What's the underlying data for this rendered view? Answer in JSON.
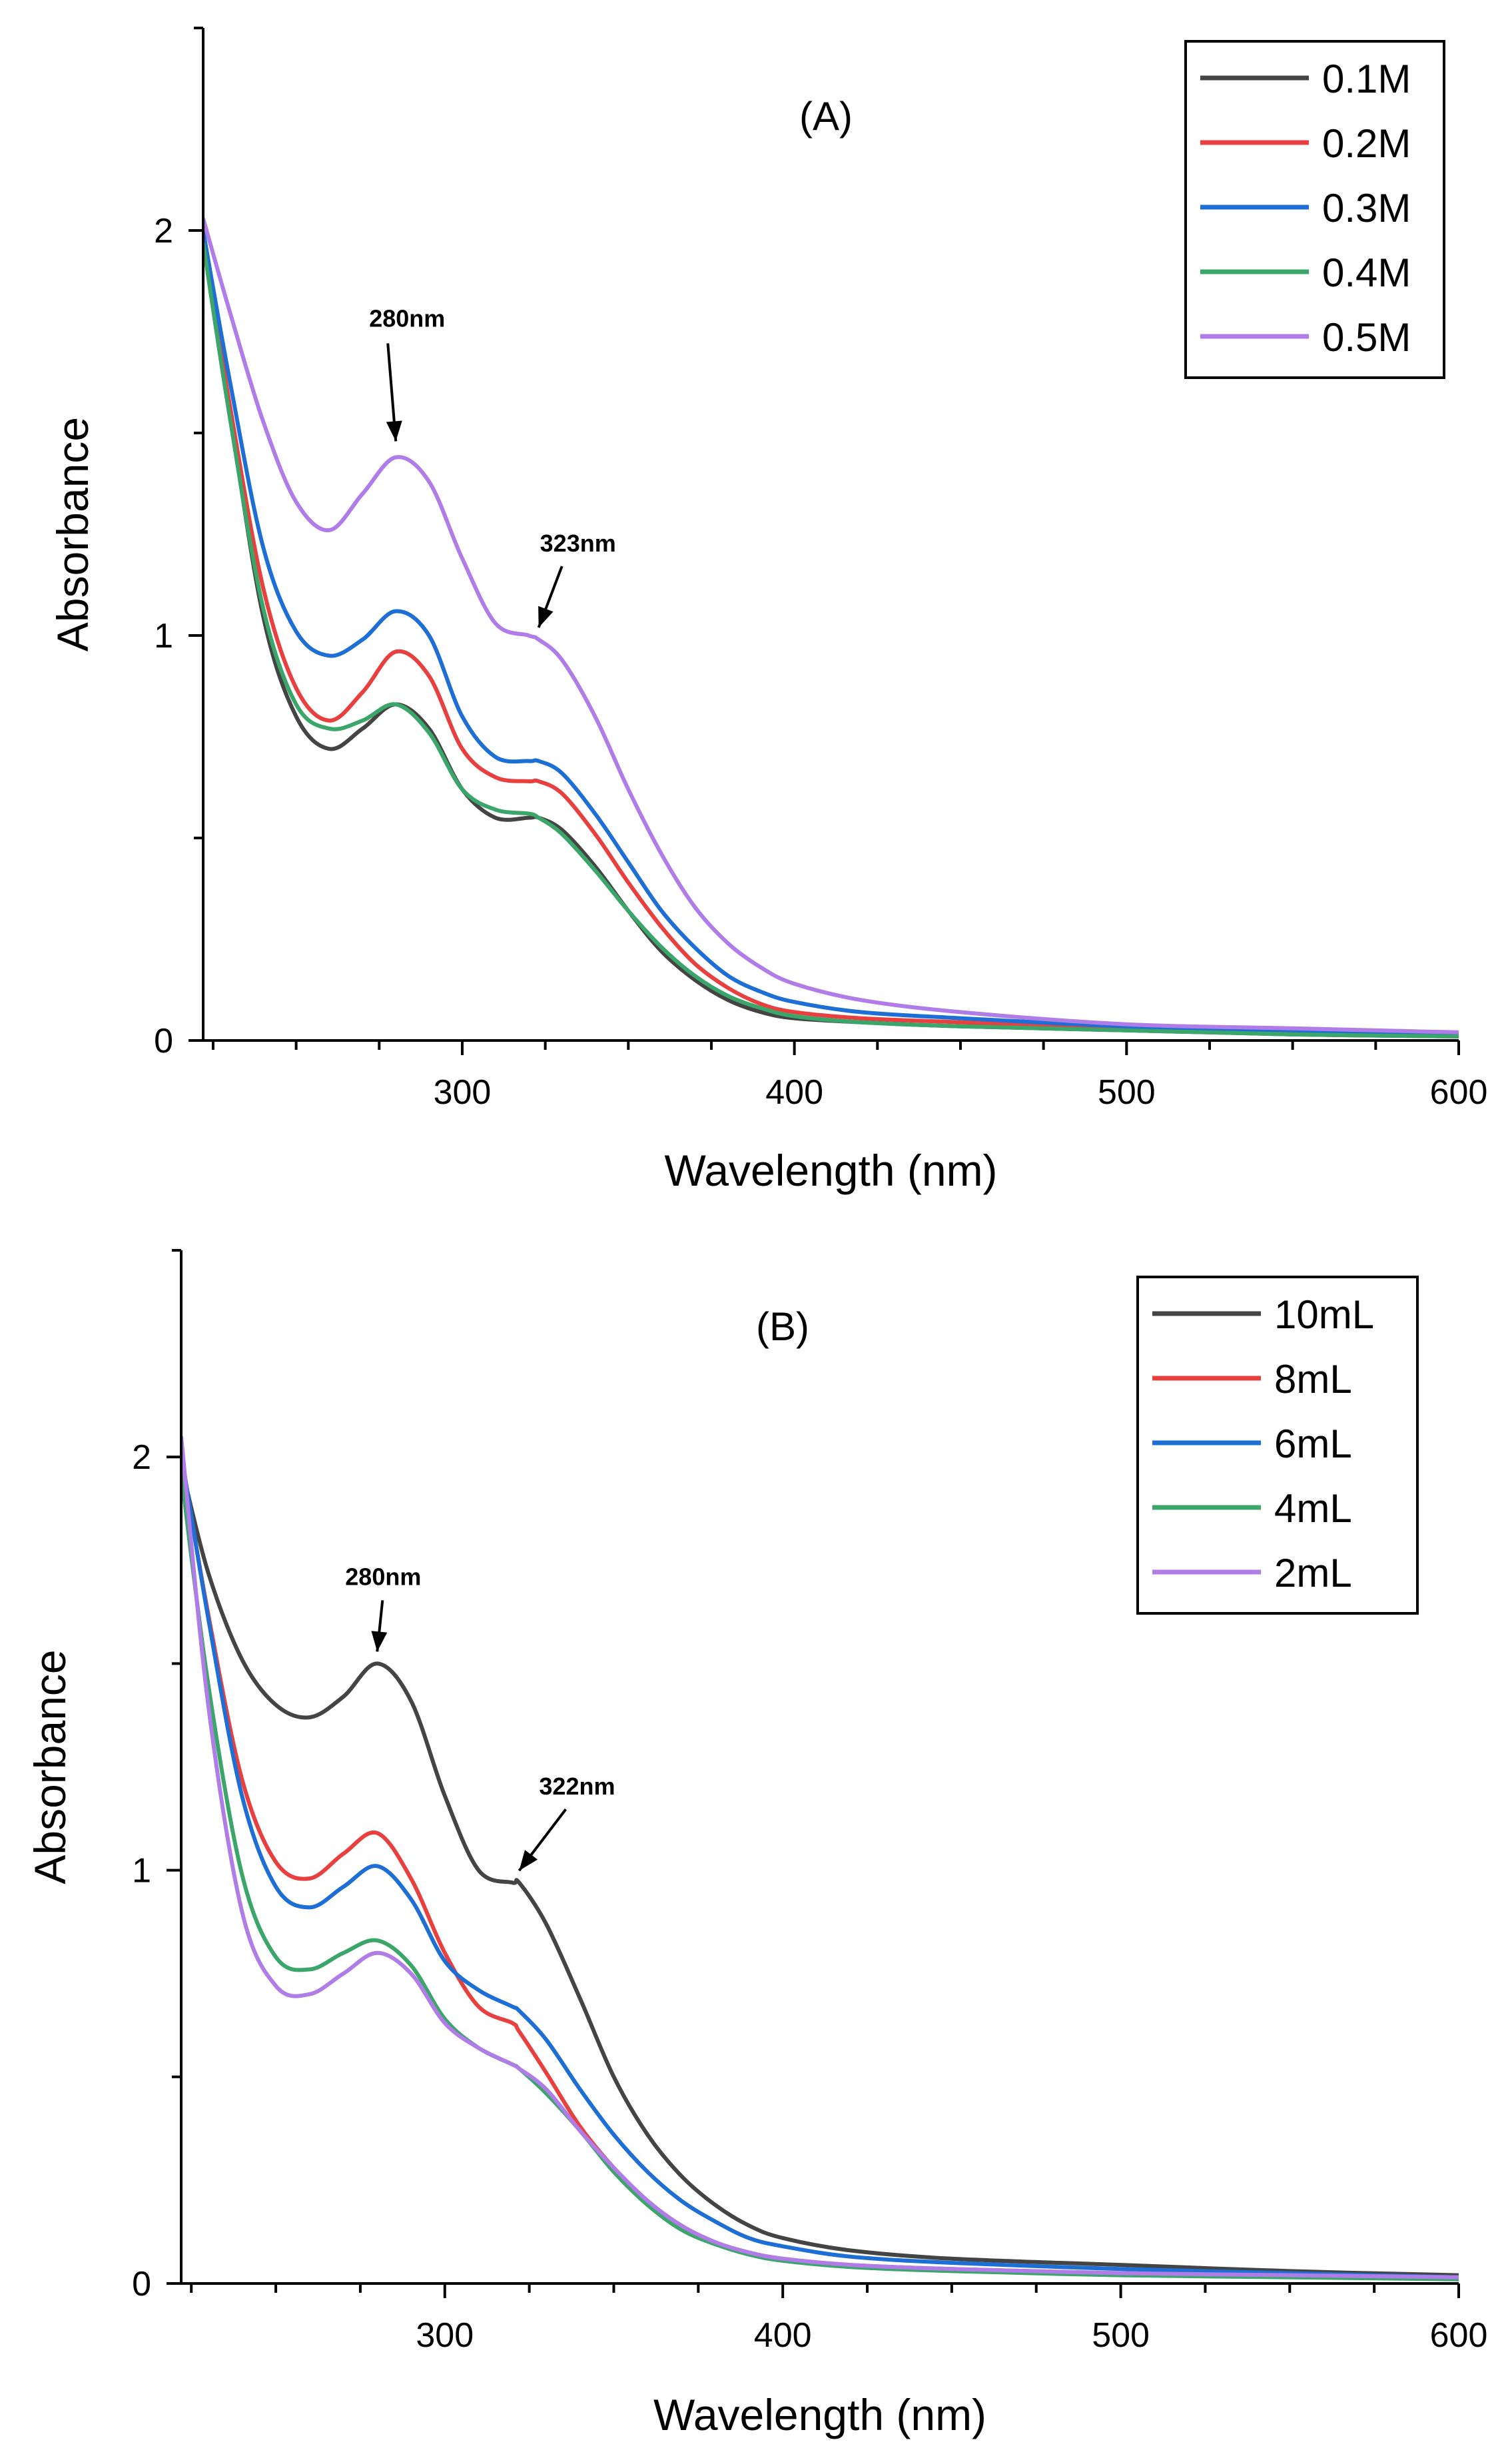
{
  "colors": {
    "black": "#444444",
    "red": "#e8403f",
    "blue": "#1d6fd6",
    "green": "#3aa66a",
    "purple": "#b07ce8"
  },
  "chart_data": [
    {
      "type": "line",
      "panel_label": "(A)",
      "xlabel": "Wavelength (nm)",
      "ylabel": "Absorbance",
      "xlim": [
        222,
        600
      ],
      "ylim": [
        0,
        2.5
      ],
      "x_ticks": [
        300,
        400,
        500,
        600
      ],
      "x_tick_labels": [
        "300",
        "400",
        "500",
        "600"
      ],
      "y_ticks": [
        0,
        1,
        2
      ],
      "y_tick_labels": [
        "0",
        "1",
        "2"
      ],
      "legend_position": "top-right",
      "annotations": [
        {
          "text": "280nm",
          "x": 280,
          "y": 1.45
        },
        {
          "text": "323nm",
          "x": 323,
          "y": 0.99
        }
      ],
      "x": [
        222,
        230,
        240,
        250,
        260,
        270,
        280,
        290,
        300,
        310,
        320,
        323,
        330,
        340,
        350,
        360,
        370,
        380,
        390,
        400,
        420,
        450,
        500,
        550,
        600
      ],
      "series": [
        {
          "name": "0.1M",
          "color": "#444444",
          "values": [
            1.98,
            1.55,
            1.05,
            0.8,
            0.72,
            0.77,
            0.83,
            0.77,
            0.62,
            0.55,
            0.55,
            0.55,
            0.52,
            0.43,
            0.32,
            0.22,
            0.15,
            0.1,
            0.07,
            0.055,
            0.045,
            0.035,
            0.025,
            0.015,
            0.01
          ]
        },
        {
          "name": "0.2M",
          "color": "#e8403f",
          "values": [
            1.98,
            1.57,
            1.12,
            0.87,
            0.79,
            0.86,
            0.96,
            0.9,
            0.72,
            0.65,
            0.64,
            0.64,
            0.61,
            0.51,
            0.39,
            0.28,
            0.19,
            0.13,
            0.09,
            0.07,
            0.055,
            0.045,
            0.03,
            0.02,
            0.015
          ]
        },
        {
          "name": "0.3M",
          "color": "#1d6fd6",
          "values": [
            2.0,
            1.63,
            1.22,
            1.01,
            0.95,
            0.99,
            1.06,
            1.0,
            0.8,
            0.7,
            0.69,
            0.69,
            0.66,
            0.56,
            0.44,
            0.32,
            0.23,
            0.16,
            0.12,
            0.095,
            0.07,
            0.055,
            0.035,
            0.025,
            0.015
          ]
        },
        {
          "name": "0.4M",
          "color": "#3aa66a",
          "values": [
            1.97,
            1.54,
            1.07,
            0.83,
            0.77,
            0.79,
            0.83,
            0.76,
            0.62,
            0.57,
            0.56,
            0.55,
            0.51,
            0.42,
            0.32,
            0.23,
            0.16,
            0.11,
            0.08,
            0.06,
            0.045,
            0.035,
            0.025,
            0.015,
            0.01
          ]
        },
        {
          "name": "0.5M",
          "color": "#b07ce8",
          "values": [
            2.03,
            1.8,
            1.53,
            1.33,
            1.26,
            1.35,
            1.44,
            1.38,
            1.19,
            1.03,
            1.0,
            0.99,
            0.94,
            0.8,
            0.62,
            0.46,
            0.33,
            0.24,
            0.18,
            0.14,
            0.1,
            0.07,
            0.04,
            0.03,
            0.02
          ]
        }
      ]
    },
    {
      "type": "line",
      "panel_label": "(B)",
      "xlabel": "Wavelength (nm)",
      "ylabel": "Absorbance",
      "xlim": [
        222,
        600
      ],
      "ylim": [
        0,
        2.5
      ],
      "x_ticks": [
        300,
        400,
        500,
        600
      ],
      "x_tick_labels": [
        "300",
        "400",
        "500",
        "600"
      ],
      "y_ticks": [
        0,
        1,
        2
      ],
      "y_tick_labels": [
        "0",
        "1",
        "2"
      ],
      "legend_position": "top-right",
      "annotations": [
        {
          "text": "280nm",
          "x": 280,
          "y": 1.5
        },
        {
          "text": "322nm",
          "x": 322,
          "y": 0.97
        }
      ],
      "x": [
        222,
        230,
        240,
        250,
        260,
        270,
        280,
        290,
        300,
        310,
        320,
        322,
        330,
        340,
        350,
        360,
        370,
        380,
        390,
        400,
        420,
        450,
        500,
        550,
        600
      ],
      "series": [
        {
          "name": "10mL",
          "color": "#444444",
          "values": [
            1.98,
            1.72,
            1.51,
            1.4,
            1.37,
            1.42,
            1.5,
            1.41,
            1.18,
            1.0,
            0.97,
            0.97,
            0.87,
            0.69,
            0.5,
            0.36,
            0.26,
            0.19,
            0.14,
            0.11,
            0.08,
            0.06,
            0.045,
            0.03,
            0.02
          ]
        },
        {
          "name": "8mL",
          "color": "#e8403f",
          "values": [
            2.0,
            1.62,
            1.22,
            1.02,
            0.98,
            1.04,
            1.09,
            0.98,
            0.8,
            0.67,
            0.63,
            0.61,
            0.51,
            0.38,
            0.28,
            0.2,
            0.14,
            0.1,
            0.075,
            0.06,
            0.045,
            0.035,
            0.025,
            0.02,
            0.015
          ]
        },
        {
          "name": "6mL",
          "color": "#1d6fd6",
          "values": [
            2.01,
            1.61,
            1.18,
            0.96,
            0.91,
            0.96,
            1.01,
            0.93,
            0.78,
            0.71,
            0.67,
            0.66,
            0.59,
            0.47,
            0.36,
            0.27,
            0.2,
            0.15,
            0.11,
            0.09,
            0.065,
            0.05,
            0.035,
            0.025,
            0.015
          ]
        },
        {
          "name": "4mL",
          "color": "#3aa66a",
          "values": [
            1.96,
            1.45,
            0.99,
            0.79,
            0.76,
            0.8,
            0.83,
            0.77,
            0.64,
            0.57,
            0.53,
            0.52,
            0.46,
            0.37,
            0.27,
            0.19,
            0.13,
            0.095,
            0.07,
            0.055,
            0.04,
            0.03,
            0.02,
            0.015,
            0.01
          ]
        },
        {
          "name": "2mL",
          "color": "#b07ce8",
          "values": [
            2.05,
            1.4,
            0.9,
            0.72,
            0.7,
            0.75,
            0.8,
            0.75,
            0.63,
            0.57,
            0.53,
            0.52,
            0.47,
            0.37,
            0.28,
            0.2,
            0.14,
            0.1,
            0.075,
            0.06,
            0.045,
            0.035,
            0.025,
            0.02,
            0.015
          ]
        }
      ]
    }
  ]
}
